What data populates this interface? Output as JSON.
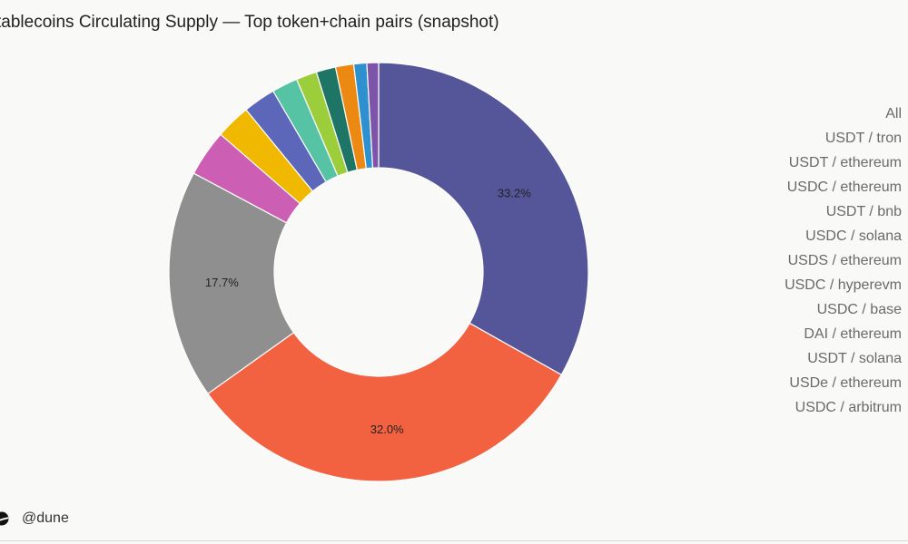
{
  "title": "tablecoins Circulating Supply — Top token+chain pairs (snapshot)",
  "footer": {
    "handle": "@dune",
    "logo_icon": "dune-logo-icon"
  },
  "chart_data": {
    "type": "pie",
    "donut": true,
    "title": "tablecoins Circulating Supply — Top token+chain pairs (snapshot)",
    "legend_position": "right",
    "legend": [
      "All",
      "USDT / tron",
      "USDT / ethereum",
      "USDC / ethereum",
      "USDT / bnb",
      "USDC / solana",
      "USDS / ethereum",
      "USDC / hyperevm",
      "USDC / base",
      "DAI / ethereum",
      "USDT / solana",
      "USDe / ethereum",
      "USDC / arbitrum"
    ],
    "slices": [
      {
        "label": "USDT / tron",
        "value": 33.2,
        "color": "#55559a",
        "data_label": "33.2%"
      },
      {
        "label": "USDT / ethereum",
        "value": 32.0,
        "color": "#f26241",
        "data_label": "32.0%"
      },
      {
        "label": "USDC / ethereum",
        "value": 17.7,
        "color": "#8f8f8f",
        "data_label": "17.7%"
      },
      {
        "label": "USDT / bnb",
        "value": 3.6,
        "color": "#cc5fb3",
        "data_label": ""
      },
      {
        "label": "USDC / solana",
        "value": 2.7,
        "color": "#f1b800",
        "data_label": ""
      },
      {
        "label": "USDS / ethereum",
        "value": 2.5,
        "color": "#5c67b9",
        "data_label": ""
      },
      {
        "label": "USDC / hyperevm",
        "value": 2.0,
        "color": "#55c3a4",
        "data_label": ""
      },
      {
        "label": "USDC / base",
        "value": 1.6,
        "color": "#9ccd3a",
        "data_label": ""
      },
      {
        "label": "DAI / ethereum",
        "value": 1.5,
        "color": "#1e7565",
        "data_label": ""
      },
      {
        "label": "USDT / solana",
        "value": 1.4,
        "color": "#ec8912",
        "data_label": ""
      },
      {
        "label": "USDe / ethereum",
        "value": 1.0,
        "color": "#2f90cf",
        "data_label": ""
      },
      {
        "label": "USDC / arbitrum",
        "value": 0.9,
        "color": "#7d54a7",
        "data_label": ""
      }
    ]
  }
}
